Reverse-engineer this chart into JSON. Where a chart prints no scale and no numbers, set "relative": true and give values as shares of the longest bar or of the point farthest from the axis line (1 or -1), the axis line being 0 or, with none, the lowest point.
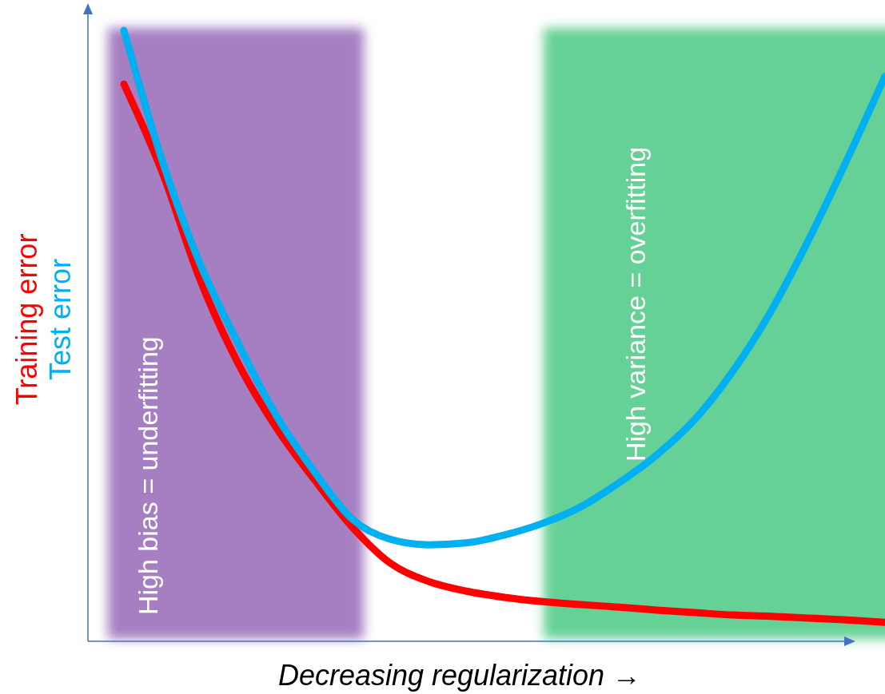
{
  "chart_data": {
    "type": "line",
    "relative": true,
    "xlabel": "Decreasing regularization →",
    "categories": [
      null,
      null,
      null,
      null,
      null,
      null,
      null,
      null,
      null,
      null,
      null,
      null,
      null,
      null,
      null,
      null,
      null,
      null,
      null,
      null,
      null
    ],
    "series": [
      {
        "name": "Training error",
        "color": "#ff0000",
        "values": [
          0.912,
          0.769,
          0.592,
          0.455,
          0.35,
          0.265,
          0.187,
          0.128,
          0.098,
          0.082,
          0.072,
          0.065,
          0.06,
          0.056,
          0.051,
          0.047,
          0.043,
          0.041,
          0.038,
          0.035,
          0.031
        ]
      },
      {
        "name": "Test error",
        "color": "#00b0f0",
        "values": [
          1,
          0.788,
          0.618,
          0.488,
          0.37,
          0.278,
          0.2,
          0.167,
          0.158,
          0.161,
          0.174,
          0.193,
          0.22,
          0.259,
          0.305,
          0.363,
          0.442,
          0.54,
          0.658,
          0.788,
          0.925
        ]
      }
    ],
    "annotations": [
      "High bias = underfitting",
      "High variance = overfitting"
    ]
  }
}
